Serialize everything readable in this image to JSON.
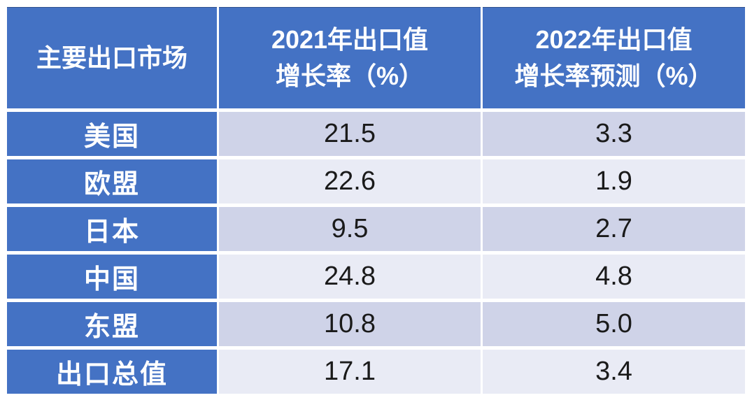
{
  "theme": {
    "header_blue": "#4472C4",
    "band_dark": "#CFD3E8",
    "band_light": "#E9EBF5",
    "number_color": "#1a1a1a",
    "header_text": "#ffffff",
    "page_bg": "#ffffff"
  },
  "table": {
    "header": {
      "market": "主要出口市场",
      "col2021_line1": "2021年出口值",
      "col2021_line2": "增长率（%）",
      "col2022_line1": "2022年出口值",
      "col2022_line2": "增长率预测（%）"
    },
    "rows": [
      {
        "market": "美国",
        "v2021": "21.5",
        "v2022": "3.3"
      },
      {
        "market": "欧盟",
        "v2021": "22.6",
        "v2022": "1.9"
      },
      {
        "market": "日本",
        "v2021": "9.5",
        "v2022": "2.7"
      },
      {
        "market": "中国",
        "v2021": "24.8",
        "v2022": "4.8"
      },
      {
        "market": "东盟",
        "v2021": "10.8",
        "v2022": "5.0"
      },
      {
        "market": "出口总值",
        "v2021": "17.1",
        "v2022": "3.4"
      }
    ]
  },
  "chart_data": {
    "type": "table",
    "title": "",
    "columns": [
      "主要出口市场",
      "2021年出口值增长率（%）",
      "2022年出口值增长率预测（%）"
    ],
    "rows": [
      [
        "美国",
        21.5,
        3.3
      ],
      [
        "欧盟",
        22.6,
        1.9
      ],
      [
        "日本",
        9.5,
        2.7
      ],
      [
        "中国",
        24.8,
        4.8
      ],
      [
        "东盟",
        10.8,
        5.0
      ],
      [
        "出口总值",
        17.1,
        3.4
      ]
    ],
    "layout": {
      "header_background": "#4472C4",
      "row_banding": [
        "#CFD3E8",
        "#E9EBF5"
      ],
      "grid": "white separators between all cells"
    }
  }
}
